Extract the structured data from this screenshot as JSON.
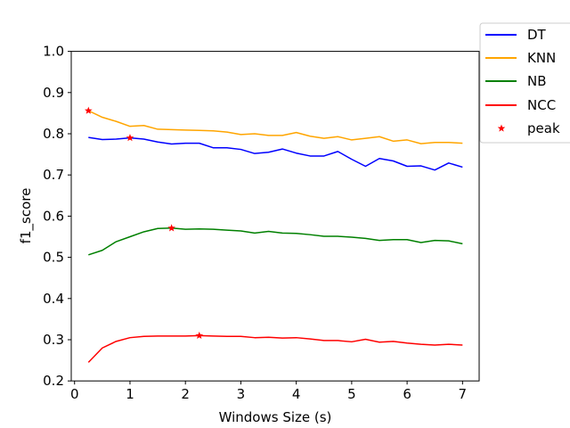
{
  "chart_data": {
    "type": "line",
    "xlabel": "Windows Size (s)",
    "ylabel": "f1_score",
    "xlim": [
      -0.06,
      7.3
    ],
    "ylim": [
      0.2,
      1.0
    ],
    "xticks": [
      0,
      1,
      2,
      3,
      4,
      5,
      6,
      7
    ],
    "yticks": [
      0.2,
      0.3,
      0.4,
      0.5,
      0.6,
      0.7,
      0.8,
      0.9,
      1.0
    ],
    "grid": false,
    "legend_position": "upper-right-outside",
    "x": [
      0.25,
      0.5,
      0.75,
      1.0,
      1.25,
      1.5,
      1.75,
      2.0,
      2.25,
      2.5,
      2.75,
      3.0,
      3.25,
      3.5,
      3.75,
      4.0,
      4.25,
      4.5,
      4.75,
      5.0,
      5.25,
      5.5,
      5.75,
      6.0,
      6.25,
      6.5,
      6.75,
      7.0
    ],
    "series": [
      {
        "name": "DT",
        "color": "#0000ff",
        "values": [
          0.791,
          0.786,
          0.787,
          0.79,
          0.787,
          0.78,
          0.775,
          0.777,
          0.777,
          0.766,
          0.766,
          0.762,
          0.752,
          0.755,
          0.763,
          0.753,
          0.746,
          0.746,
          0.757,
          0.738,
          0.721,
          0.74,
          0.734,
          0.721,
          0.722,
          0.712,
          0.729,
          0.719
        ]
      },
      {
        "name": "KNN",
        "color": "#ffa500",
        "values": [
          0.856,
          0.84,
          0.83,
          0.818,
          0.82,
          0.811,
          0.81,
          0.809,
          0.808,
          0.807,
          0.804,
          0.798,
          0.8,
          0.796,
          0.796,
          0.803,
          0.794,
          0.789,
          0.793,
          0.785,
          0.789,
          0.793,
          0.782,
          0.785,
          0.776,
          0.779,
          0.779,
          0.777
        ]
      },
      {
        "name": "NB",
        "color": "#008000",
        "values": [
          0.506,
          0.517,
          0.538,
          0.55,
          0.562,
          0.57,
          0.571,
          0.568,
          0.569,
          0.568,
          0.566,
          0.564,
          0.559,
          0.563,
          0.559,
          0.558,
          0.555,
          0.551,
          0.551,
          0.549,
          0.546,
          0.541,
          0.543,
          0.543,
          0.536,
          0.541,
          0.54,
          0.533
        ]
      },
      {
        "name": "NCC",
        "color": "#ff0000",
        "values": [
          0.245,
          0.28,
          0.296,
          0.305,
          0.308,
          0.309,
          0.309,
          0.309,
          0.31,
          0.309,
          0.308,
          0.308,
          0.305,
          0.306,
          0.304,
          0.305,
          0.302,
          0.298,
          0.298,
          0.295,
          0.301,
          0.294,
          0.296,
          0.292,
          0.289,
          0.287,
          0.289,
          0.287
        ]
      }
    ],
    "peaks": {
      "name": "peak",
      "color": "#ff0000",
      "marker": "star",
      "points": [
        {
          "x": 0.25,
          "y": 0.856
        },
        {
          "x": 1.0,
          "y": 0.79
        },
        {
          "x": 1.75,
          "y": 0.571
        },
        {
          "x": 2.25,
          "y": 0.31
        }
      ]
    }
  }
}
